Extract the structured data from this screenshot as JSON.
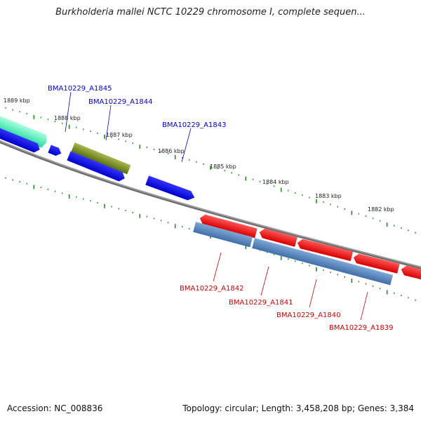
{
  "title": "Burkholderia mallei NCTC 10229 chromosome I, complete sequen...",
  "footer": {
    "accession": "Accession: NC_008836",
    "summary": "Topology: circular; Length: 3,458,208 bp; Genes: 3,384"
  },
  "kbp_labels": [
    "1889 kbp",
    "1888 kbp",
    "1887 kbp",
    "1886 kbp",
    "1885 kbp",
    "1884 kbp",
    "1883 kbp",
    "1882 kbp"
  ],
  "genes_top": [
    "BMA10229_A1845",
    "BMA10229_A1844",
    "BMA10229_A1843"
  ],
  "genes_bottom": [
    "BMA10229_A1842",
    "BMA10229_A1841",
    "BMA10229_A1840",
    "BMA10229_A1839"
  ],
  "colors": {
    "top_label": "#0000cc",
    "bottom_label": "#cc0000",
    "tick": "#228b22",
    "backbone": "#888888"
  }
}
